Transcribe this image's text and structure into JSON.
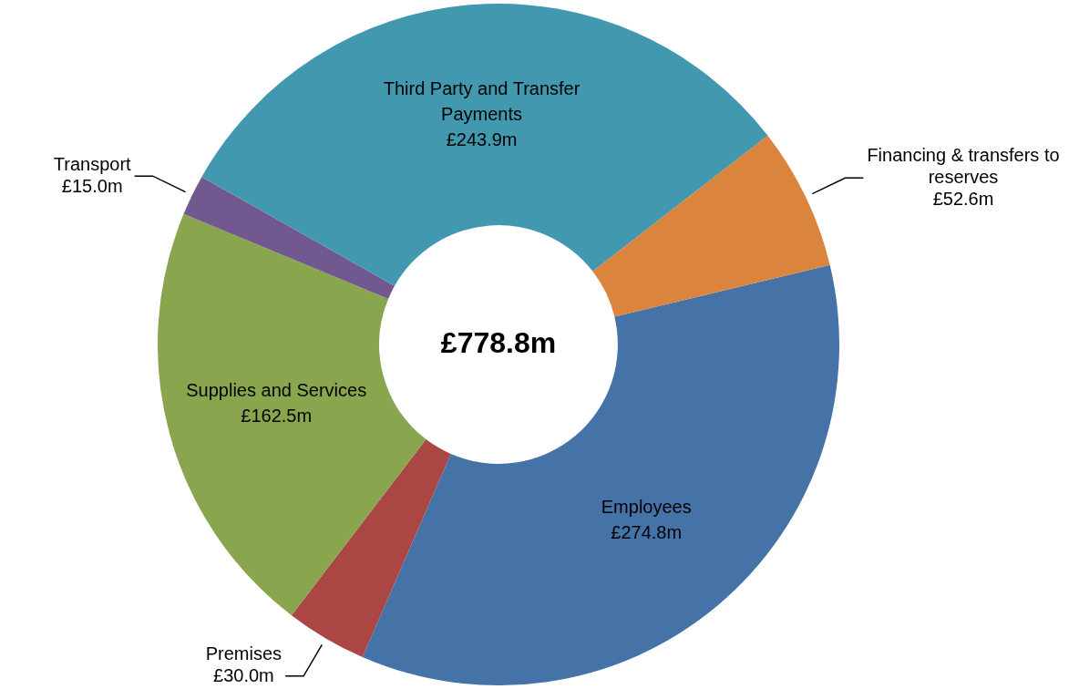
{
  "chart_data": {
    "type": "donut",
    "categories": [
      "Employees",
      "Premises",
      "Supplies and Services",
      "Transport",
      "Third Party and Transfer Payments",
      "Financing & transfers to reserves"
    ],
    "values": [
      274.8,
      30.0,
      162.5,
      15.0,
      243.9,
      52.6
    ],
    "value_labels": [
      "£274.8m",
      "£30.0m",
      "£162.5m",
      "£15.0m",
      "£243.9m",
      "£52.6m"
    ],
    "colors": [
      "#4573a7",
      "#aa4643",
      "#89a54e",
      "#71588f",
      "#4198af",
      "#db843d"
    ],
    "annotations": [
      "£778.8m"
    ],
    "legend": false
  }
}
